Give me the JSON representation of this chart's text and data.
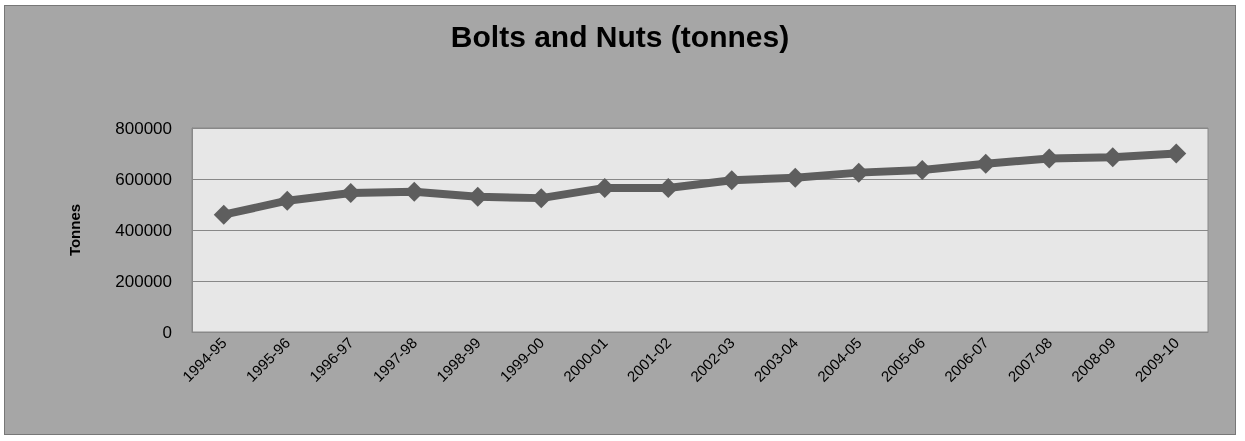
{
  "chart_data": {
    "type": "line",
    "title": "Bolts and Nuts (tonnes)",
    "ylabel": "Tonnes",
    "categories": [
      "1994-95",
      "1995-96",
      "1996-97",
      "1997-98",
      "1998-99",
      "1999-00",
      "2000-01",
      "2001-02",
      "2002-03",
      "2003-04",
      "2004-05",
      "2005-06",
      "2006-07",
      "2007-08",
      "2008-09",
      "2009-10"
    ],
    "series": [
      {
        "color": "#5e5e5e",
        "values": [
          460000,
          515000,
          545000,
          550000,
          530000,
          525000,
          565000,
          565000,
          595000,
          605000,
          625000,
          635000,
          660000,
          680000,
          685000,
          700000
        ]
      }
    ],
    "ylim": [
      0,
      800000
    ],
    "yticks": [
      0,
      200000,
      400000,
      600000,
      800000
    ],
    "grid": "y",
    "marker": "diamond",
    "line_style": "solid"
  }
}
